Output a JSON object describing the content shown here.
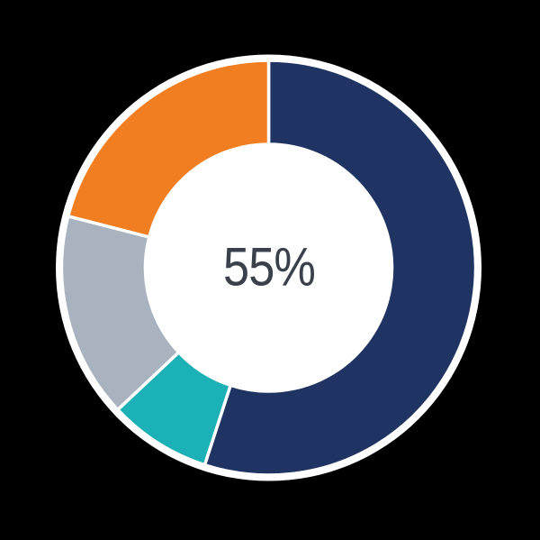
{
  "chart_data": {
    "type": "pie",
    "subtype": "donut",
    "center_label": "55%",
    "start_angle_deg": 0,
    "direction": "clockwise",
    "donut_hole_ratio": 0.6,
    "legend": "none",
    "divider_color": "#FFFFFF",
    "segments": [
      {
        "name": "navy",
        "value": 55,
        "color": "#1F3462"
      },
      {
        "name": "teal",
        "value": 8,
        "color": "#1BB1B6"
      },
      {
        "name": "gray",
        "value": 16,
        "color": "#A8B3BF"
      },
      {
        "name": "orange",
        "value": 21,
        "color": "#F17E20"
      }
    ]
  },
  "colors": {
    "background": "#000000",
    "surround_ring": "#FFFFFF",
    "hole": "#FFFFFF",
    "center_text": "#3A414B"
  }
}
